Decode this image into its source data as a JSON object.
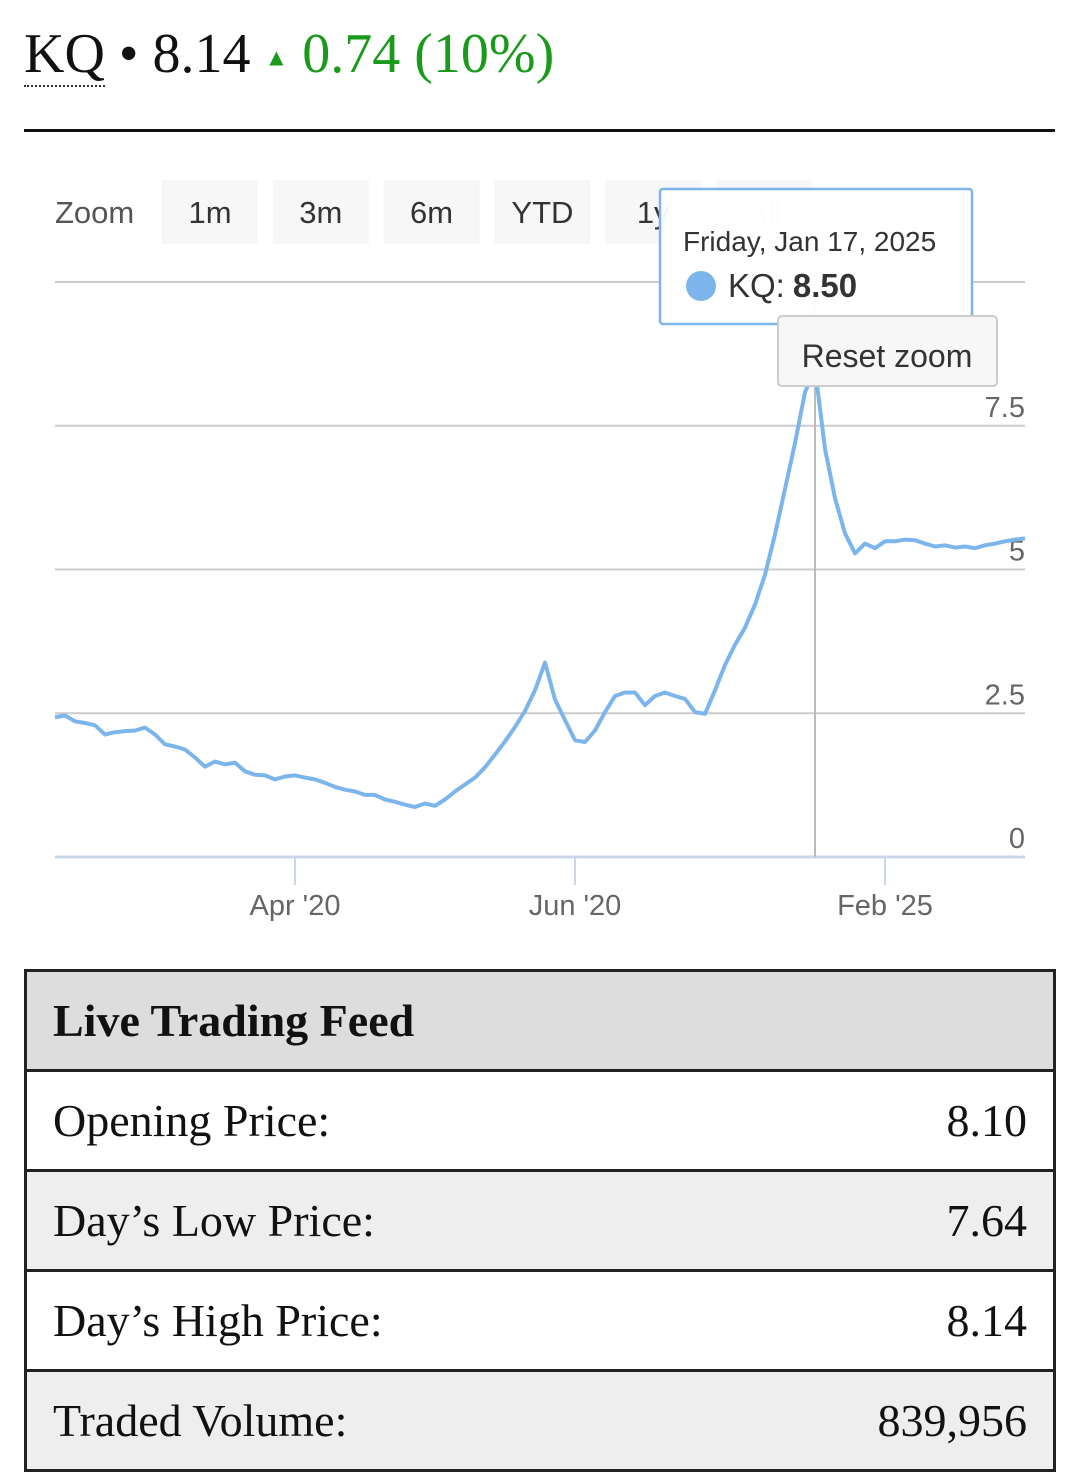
{
  "header": {
    "symbol": "KQ",
    "separator": "•",
    "price": "8.14",
    "arrow": "▲",
    "change": "0.74 (10%)"
  },
  "zoom": {
    "label": "Zoom",
    "buttons": [
      "1m",
      "3m",
      "6m",
      "YTD",
      "1y",
      "All"
    ]
  },
  "chart_data": {
    "type": "line",
    "categories": [
      null,
      null,
      null,
      null,
      null,
      null,
      null,
      null,
      null,
      null,
      null,
      null,
      null,
      null,
      null,
      null,
      null,
      null,
      null,
      null,
      null,
      null,
      null,
      null,
      "Apr '20",
      null,
      null,
      null,
      null,
      null,
      null,
      null,
      null,
      null,
      null,
      null,
      null,
      null,
      null,
      null,
      null,
      null,
      null,
      null,
      null,
      null,
      null,
      null,
      null,
      null,
      null,
      null,
      "Jun '20",
      null,
      null,
      null,
      null,
      null,
      null,
      null,
      null,
      null,
      null,
      null,
      null,
      null,
      null,
      null,
      null,
      null,
      null,
      null,
      null,
      null,
      null,
      null,
      null,
      null,
      null,
      null,
      null,
      null,
      null,
      "Feb '25",
      null,
      null,
      null,
      null,
      null,
      null,
      null,
      null,
      null,
      null,
      null,
      null,
      null,
      null
    ],
    "series": [
      {
        "name": "KQ",
        "color": "#7cb5ec",
        "values": [
          2.43,
          2.46,
          2.36,
          2.33,
          2.29,
          2.13,
          2.17,
          2.19,
          2.2,
          2.25,
          2.13,
          1.96,
          1.92,
          1.87,
          1.73,
          1.57,
          1.66,
          1.61,
          1.64,
          1.49,
          1.43,
          1.42,
          1.35,
          1.4,
          1.42,
          1.38,
          1.35,
          1.29,
          1.22,
          1.17,
          1.14,
          1.08,
          1.08,
          1.0,
          0.96,
          0.91,
          0.87,
          0.93,
          0.89,
          1.0,
          1.14,
          1.26,
          1.38,
          1.56,
          1.78,
          2.01,
          2.26,
          2.54,
          2.9,
          3.38,
          2.74,
          2.38,
          2.03,
          2.0,
          2.2,
          2.52,
          2.8,
          2.86,
          2.86,
          2.64,
          2.8,
          2.86,
          2.8,
          2.75,
          2.52,
          2.49,
          2.9,
          3.34,
          3.69,
          3.99,
          4.39,
          4.91,
          5.61,
          6.4,
          7.2,
          8.08,
          8.5,
          7.1,
          6.24,
          5.63,
          5.28,
          5.45,
          5.37,
          5.49,
          5.49,
          5.52,
          5.51,
          5.45,
          5.4,
          5.42,
          5.38,
          5.4,
          5.37,
          5.42,
          5.45,
          5.49,
          5.52,
          5.54
        ]
      }
    ],
    "ylim": [
      0,
      10
    ],
    "yticks": [
      0,
      2.5,
      5,
      7.5
    ],
    "grid": true,
    "tooltip": {
      "date": "Friday, Jan 17, 2025",
      "label": "KQ:",
      "value": "8.50"
    },
    "reset_zoom": "Reset zoom"
  },
  "table": {
    "title": "Live Trading Feed",
    "rows": [
      [
        "Opening Price:",
        "8.10"
      ],
      [
        "Day’s Low Price:",
        "7.64"
      ],
      [
        "Day’s High Price:",
        "8.14"
      ],
      [
        "Traded Volume:",
        "839,956"
      ]
    ]
  }
}
